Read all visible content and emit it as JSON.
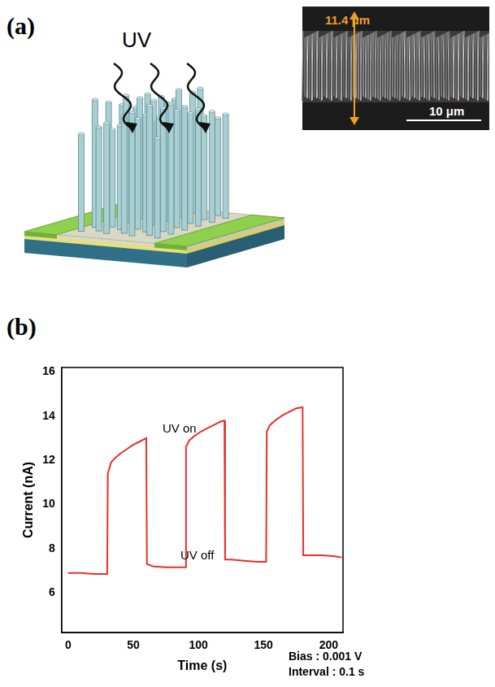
{
  "diagram": {
    "panel": "(a)",
    "label": "UV",
    "inset": {
      "height_label": "11.4 μm",
      "scale_bar": "10 μm"
    }
  },
  "chart_data": {
    "type": "line",
    "panel": "(b)",
    "x_label": "Time (s)",
    "y_label": "Current (nA)",
    "annotations": [
      "UV on",
      "UV off"
    ],
    "notes": [
      "Bias : 0.001 V",
      "Interval : 0.1 s"
    ],
    "x": [
      0,
      10,
      20,
      30,
      30.5,
      33,
      36,
      40,
      45,
      50,
      55,
      60,
      60.5,
      65,
      75,
      85,
      90,
      90.5,
      93,
      97,
      102,
      107,
      112,
      117,
      120,
      120.5,
      125,
      135,
      145,
      152,
      152.5,
      155,
      160,
      165,
      170,
      175,
      180,
      180.5,
      185,
      195,
      205,
      210
    ],
    "values": [
      6.9,
      6.9,
      6.85,
      6.85,
      11.4,
      11.9,
      12.1,
      12.3,
      12.5,
      12.7,
      12.85,
      13.0,
      7.3,
      7.2,
      7.15,
      7.15,
      7.15,
      12.6,
      12.9,
      13.1,
      13.3,
      13.45,
      13.6,
      13.75,
      13.8,
      7.5,
      7.5,
      7.45,
      7.4,
      7.4,
      13.3,
      13.6,
      13.85,
      14.05,
      14.2,
      14.35,
      14.4,
      7.7,
      7.7,
      7.7,
      7.65,
      7.6
    ],
    "color": "#e8302a",
    "xlim": [
      -5,
      211
    ],
    "xticks": [
      0,
      50,
      100,
      150,
      200
    ],
    "ylim": [
      4.2,
      16.2
    ],
    "yticks": [
      6,
      8,
      10,
      12,
      14,
      16
    ],
    "grid": false
  }
}
